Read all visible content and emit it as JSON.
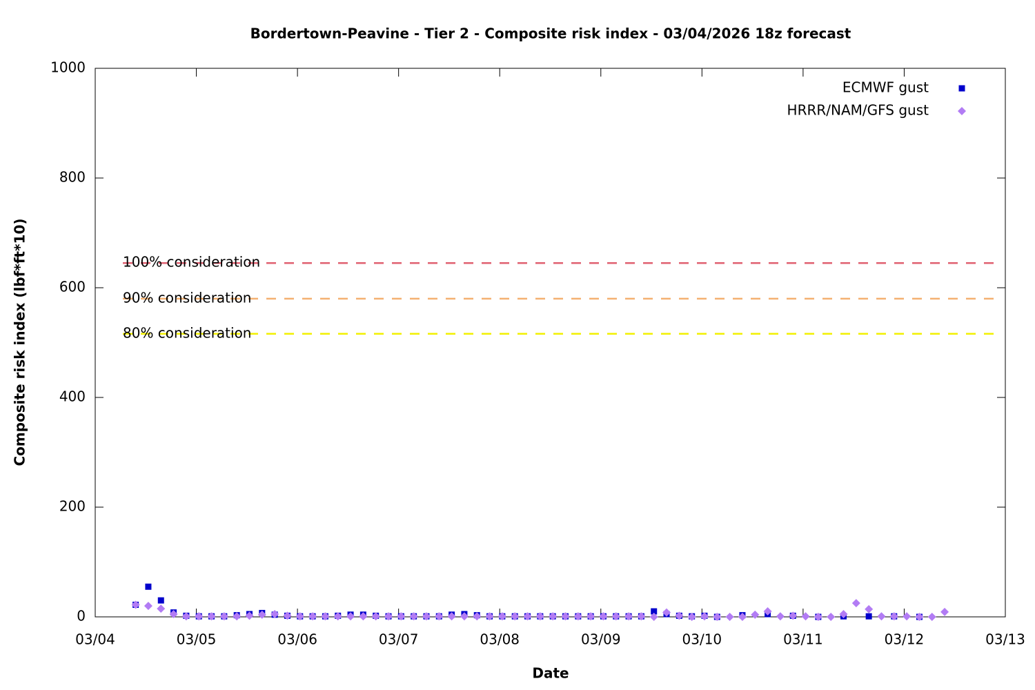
{
  "chart_data": {
    "type": "scatter",
    "title": "Bordertown-Peavine - Tier 2 - Composite risk index - 03/04/2026 18z forecast",
    "x_label": "Date",
    "y_label": "Composite risk index (lbf*ft*10)",
    "xlim": [
      0,
      9
    ],
    "xticks": [
      {
        "value": 0,
        "label": "03/04"
      },
      {
        "value": 1,
        "label": "03/05"
      },
      {
        "value": 2,
        "label": "03/06"
      },
      {
        "value": 3,
        "label": "03/07"
      },
      {
        "value": 4,
        "label": "03/08"
      },
      {
        "value": 5,
        "label": "03/09"
      },
      {
        "value": 6,
        "label": "03/10"
      },
      {
        "value": 7,
        "label": "03/11"
      },
      {
        "value": 8,
        "label": "03/12"
      },
      {
        "value": 9,
        "label": "03/13"
      }
    ],
    "ylim": [
      0,
      1000
    ],
    "yticks": [
      0,
      200,
      400,
      600,
      800,
      1000
    ],
    "legend": "top right",
    "x": [
      0.4,
      0.525,
      0.65,
      0.775,
      0.9,
      1.025,
      1.15,
      1.275,
      1.4,
      1.525,
      1.65,
      1.775,
      1.9,
      2.025,
      2.15,
      2.275,
      2.4,
      2.525,
      2.65,
      2.775,
      2.9,
      3.025,
      3.15,
      3.275,
      3.4,
      3.525,
      3.65,
      3.775,
      3.9,
      4.025,
      4.15,
      4.275,
      4.4,
      4.525,
      4.65,
      4.775,
      4.9,
      5.025,
      5.15,
      5.275,
      5.4,
      5.525,
      5.65,
      5.775,
      5.9,
      6.025,
      6.15,
      6.275,
      6.4,
      6.525,
      6.65,
      6.775,
      6.9,
      7.025,
      7.15,
      7.275,
      7.4,
      7.525,
      7.65,
      7.775,
      7.9,
      8.025,
      8.15,
      8.275,
      8.4
    ],
    "series": [
      {
        "name": "ECMWF gust",
        "color": "#0000cc",
        "marker": "square",
        "values": [
          22,
          55,
          30,
          8,
          2,
          1,
          1,
          1,
          3,
          5,
          7,
          4,
          2,
          1,
          1,
          1,
          2,
          4,
          4,
          2,
          1,
          1,
          1,
          1,
          1,
          4,
          5,
          3,
          1,
          1,
          1,
          1,
          1,
          1,
          1,
          1,
          1,
          1,
          1,
          1,
          1,
          10,
          5,
          2,
          1,
          2,
          0,
          null,
          3,
          null,
          5,
          null,
          2,
          null,
          0,
          null,
          1,
          null,
          1,
          null,
          1,
          null,
          0,
          null,
          null
        ]
      },
      {
        "name": "HRRR/NAM/GFS gust",
        "color": "#b27cf4",
        "marker": "diamond",
        "values": [
          22,
          20,
          15,
          5,
          1,
          1,
          1,
          1,
          1,
          2,
          4,
          5,
          2,
          1,
          1,
          1,
          1,
          1,
          1,
          1,
          1,
          1,
          1,
          1,
          1,
          1,
          1,
          1,
          1,
          1,
          1,
          1,
          1,
          1,
          1,
          1,
          1,
          1,
          1,
          1,
          1,
          0,
          8,
          2,
          0,
          1,
          0,
          0,
          0,
          4,
          10,
          1,
          2,
          1,
          0,
          0,
          5,
          25,
          14,
          1,
          1,
          1,
          0,
          0,
          9
        ]
      }
    ],
    "thresholds": [
      {
        "label": "100% consideration",
        "value": 645,
        "color": "#e06070"
      },
      {
        "label": "90% consideration",
        "value": 580,
        "color": "#f4b070"
      },
      {
        "label": "80% consideration",
        "value": 516,
        "color": "#f2f000"
      }
    ]
  }
}
